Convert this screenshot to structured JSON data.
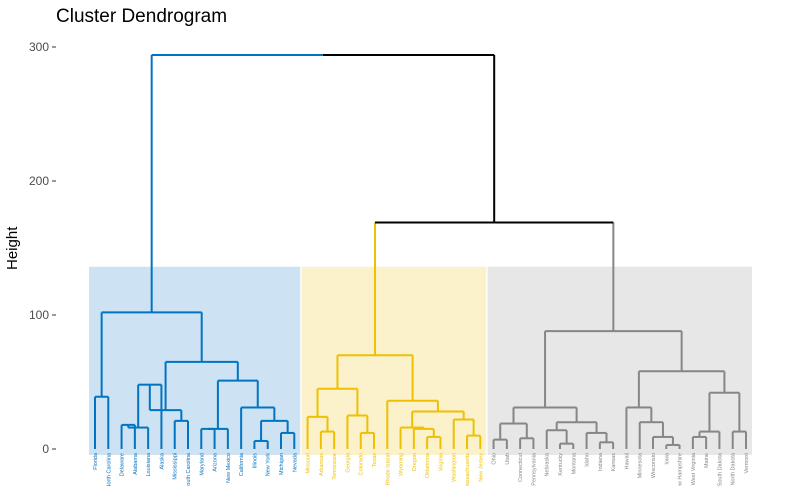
{
  "chart_data": {
    "type": "dendrogram",
    "title": "Cluster Dendrogram",
    "xlabel": "",
    "ylabel": "Height",
    "ylim": [
      0,
      300
    ],
    "yticks": [
      0,
      100,
      200,
      300
    ],
    "grid": false,
    "k": 3,
    "colors": {
      "cluster_1": "#0073C2",
      "cluster_2": "#EFC000",
      "cluster_3": "#868686",
      "top": "#000000",
      "rect_1": "#cde3f3",
      "rect_2": "#fbf2cc",
      "rect_3": "#e7e7e7"
    },
    "leaves": [
      {
        "label": "Florida",
        "cluster": 1
      },
      {
        "label": "North Carolina",
        "cluster": 1
      },
      {
        "label": "Delaware",
        "cluster": 1
      },
      {
        "label": "Alabama",
        "cluster": 1
      },
      {
        "label": "Louisiana",
        "cluster": 1
      },
      {
        "label": "Alaska",
        "cluster": 1
      },
      {
        "label": "Mississippi",
        "cluster": 1
      },
      {
        "label": "South Carolina",
        "cluster": 1
      },
      {
        "label": "Maryland",
        "cluster": 1
      },
      {
        "label": "Arizona",
        "cluster": 1
      },
      {
        "label": "New Mexico",
        "cluster": 1
      },
      {
        "label": "California",
        "cluster": 1
      },
      {
        "label": "Illinois",
        "cluster": 1
      },
      {
        "label": "New York",
        "cluster": 1
      },
      {
        "label": "Michigan",
        "cluster": 1
      },
      {
        "label": "Nevada",
        "cluster": 1
      },
      {
        "label": "Missouri",
        "cluster": 2
      },
      {
        "label": "Arkansas",
        "cluster": 2
      },
      {
        "label": "Tennessee",
        "cluster": 2
      },
      {
        "label": "Georgia",
        "cluster": 2
      },
      {
        "label": "Colorado",
        "cluster": 2
      },
      {
        "label": "Texas",
        "cluster": 2
      },
      {
        "label": "Rhode Island",
        "cluster": 2
      },
      {
        "label": "Wyoming",
        "cluster": 2
      },
      {
        "label": "Oregon",
        "cluster": 2
      },
      {
        "label": "Oklahoma",
        "cluster": 2
      },
      {
        "label": "Virginia",
        "cluster": 2
      },
      {
        "label": "Washington",
        "cluster": 2
      },
      {
        "label": "Massachusetts",
        "cluster": 2
      },
      {
        "label": "New Jersey",
        "cluster": 2
      },
      {
        "label": "Ohio",
        "cluster": 3
      },
      {
        "label": "Utah",
        "cluster": 3
      },
      {
        "label": "Connecticut",
        "cluster": 3
      },
      {
        "label": "Pennsylvania",
        "cluster": 3
      },
      {
        "label": "Nebraska",
        "cluster": 3
      },
      {
        "label": "Kentucky",
        "cluster": 3
      },
      {
        "label": "Montana",
        "cluster": 3
      },
      {
        "label": "Idaho",
        "cluster": 3
      },
      {
        "label": "Indiana",
        "cluster": 3
      },
      {
        "label": "Kansas",
        "cluster": 3
      },
      {
        "label": "Hawaii",
        "cluster": 3
      },
      {
        "label": "Minnesota",
        "cluster": 3
      },
      {
        "label": "Wisconsin",
        "cluster": 3
      },
      {
        "label": "Iowa",
        "cluster": 3
      },
      {
        "label": "New Hampshire",
        "cluster": 3
      },
      {
        "label": "West Virginia",
        "cluster": 3
      },
      {
        "label": "Maine",
        "cluster": 3
      },
      {
        "label": "South Dakota",
        "cluster": 3
      },
      {
        "label": "North Dakota",
        "cluster": 3
      },
      {
        "label": "Vermont",
        "cluster": 3
      }
    ],
    "merges": [
      {
        "l": "L0",
        "r": "L1",
        "h": 39,
        "id": "A1"
      },
      {
        "l": "L2",
        "r": "L3",
        "h": 18,
        "id": "A2"
      },
      {
        "l": "A2",
        "r": "L4",
        "h": 16,
        "id": "A3"
      },
      {
        "l": "A3",
        "r": "L5",
        "h": 48,
        "id": "A4"
      },
      {
        "l": "L6",
        "r": "L7",
        "h": 21,
        "id": "A5"
      },
      {
        "l": "A4",
        "r": "A5",
        "h": 29,
        "id": "A6x"
      },
      {
        "l": "L8",
        "r": "L9",
        "h": 15,
        "id": "A7"
      },
      {
        "l": "A7",
        "r": "L10",
        "h": 15,
        "id": "A8"
      },
      {
        "l": "L12",
        "r": "L13",
        "h": 6,
        "id": "A9"
      },
      {
        "l": "L14",
        "r": "L15",
        "h": 12,
        "id": "A10"
      },
      {
        "l": "A9",
        "r": "A10",
        "h": 21,
        "id": "A11"
      },
      {
        "l": "L11",
        "r": "A11",
        "h": 31,
        "id": "A12"
      },
      {
        "l": "A8",
        "r": "A12",
        "h": 51,
        "id": "A13"
      },
      {
        "l": "A6x",
        "r": "A13",
        "h": 65,
        "id": "A14"
      },
      {
        "l": "A1",
        "r": "A14",
        "h": 102,
        "id": "A15"
      },
      {
        "l": "L17",
        "r": "L18",
        "h": 13,
        "id": "B1"
      },
      {
        "l": "L16",
        "r": "B1",
        "h": 24,
        "id": "B2"
      },
      {
        "l": "L20",
        "r": "L21",
        "h": 12,
        "id": "B3"
      },
      {
        "l": "L19",
        "r": "B3",
        "h": 25,
        "id": "B4"
      },
      {
        "l": "B2",
        "r": "B4",
        "h": 45,
        "id": "B5"
      },
      {
        "l": "L25",
        "r": "L26",
        "h": 9,
        "id": "B6"
      },
      {
        "l": "L24",
        "r": "B6",
        "h": 15,
        "id": "B7"
      },
      {
        "l": "L23",
        "r": "B7",
        "h": 16,
        "id": "B8"
      },
      {
        "l": "L28",
        "r": "L29",
        "h": 10,
        "id": "B9"
      },
      {
        "l": "L27",
        "r": "B9",
        "h": 22,
        "id": "B10"
      },
      {
        "l": "B8",
        "r": "B10",
        "h": 28,
        "id": "B11"
      },
      {
        "l": "L22",
        "r": "B11",
        "h": 36,
        "id": "B12"
      },
      {
        "l": "B5",
        "r": "B12",
        "h": 70,
        "id": "B13"
      },
      {
        "l": "L30",
        "r": "L31",
        "h": 7,
        "id": "C1"
      },
      {
        "l": "L32",
        "r": "L33",
        "h": 8,
        "id": "C2"
      },
      {
        "l": "C1",
        "r": "C2",
        "h": 19,
        "id": "C3"
      },
      {
        "l": "L35",
        "r": "L36",
        "h": 4,
        "id": "C4"
      },
      {
        "l": "L34",
        "r": "C4",
        "h": 14,
        "id": "C5"
      },
      {
        "l": "L38",
        "r": "L39",
        "h": 5,
        "id": "C6"
      },
      {
        "l": "L37",
        "r": "C6",
        "h": 12,
        "id": "C7"
      },
      {
        "l": "C5",
        "r": "C7",
        "h": 20,
        "id": "C8"
      },
      {
        "l": "C3",
        "r": "C8",
        "h": 31,
        "id": "C9"
      },
      {
        "l": "L43",
        "r": "L44",
        "h": 3,
        "id": "C10"
      },
      {
        "l": "L42",
        "r": "C10",
        "h": 9,
        "id": "C11"
      },
      {
        "l": "L41",
        "r": "C11",
        "h": 20,
        "id": "C12"
      },
      {
        "l": "L40",
        "r": "C12",
        "h": 31,
        "id": "C13"
      },
      {
        "l": "L45",
        "r": "L46",
        "h": 9,
        "id": "C14"
      },
      {
        "l": "C14",
        "r": "L47",
        "h": 13,
        "id": "C15"
      },
      {
        "l": "L48",
        "r": "L49",
        "h": 13,
        "id": "C16"
      },
      {
        "l": "C15",
        "r": "C16",
        "h": 42,
        "id": "C17"
      },
      {
        "l": "C13",
        "r": "C17",
        "h": 58,
        "id": "C18"
      },
      {
        "l": "C9",
        "r": "C18",
        "h": 88,
        "id": "C19"
      },
      {
        "l": "B13",
        "r": "C19",
        "h": 169,
        "id": "D1"
      },
      {
        "l": "A15",
        "r": "D1",
        "h": 294,
        "id": "ROOT"
      }
    ],
    "rect_height": 136
  }
}
